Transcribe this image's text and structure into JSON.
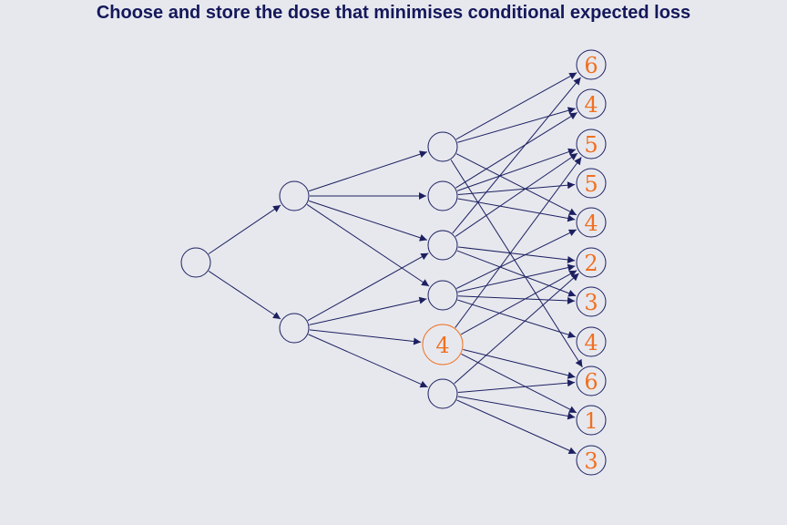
{
  "title": "Choose and store the dose that minimises conditional expected loss",
  "colors": {
    "background": "#e7e8ee",
    "edge": "#1c2060",
    "value": "#f07020",
    "highlight": "#f07020"
  },
  "nodes": [
    {
      "id": "root",
      "value": ""
    },
    {
      "id": "a1",
      "value": ""
    },
    {
      "id": "a2",
      "value": ""
    },
    {
      "id": "b1",
      "value": ""
    },
    {
      "id": "b2",
      "value": ""
    },
    {
      "id": "b3",
      "value": ""
    },
    {
      "id": "b4",
      "value": ""
    },
    {
      "id": "b5",
      "value": "4",
      "highlight": true
    },
    {
      "id": "b6",
      "value": ""
    },
    {
      "id": "l1",
      "value": "6"
    },
    {
      "id": "l2",
      "value": "4"
    },
    {
      "id": "l3",
      "value": "5"
    },
    {
      "id": "l4",
      "value": "5"
    },
    {
      "id": "l5",
      "value": "4"
    },
    {
      "id": "l6",
      "value": "2"
    },
    {
      "id": "l7",
      "value": "3"
    },
    {
      "id": "l8",
      "value": "4"
    },
    {
      "id": "l9",
      "value": "6"
    },
    {
      "id": "l10",
      "value": "1"
    },
    {
      "id": "l11",
      "value": "3"
    }
  ],
  "edges": [
    [
      "root",
      "a1"
    ],
    [
      "root",
      "a2"
    ],
    [
      "a1",
      "b1"
    ],
    [
      "a1",
      "b2"
    ],
    [
      "a1",
      "b3"
    ],
    [
      "a1",
      "b4"
    ],
    [
      "a2",
      "b3"
    ],
    [
      "a2",
      "b4"
    ],
    [
      "a2",
      "b5"
    ],
    [
      "a2",
      "b6"
    ],
    [
      "b1",
      "l1"
    ],
    [
      "b1",
      "l2"
    ],
    [
      "b1",
      "l5"
    ],
    [
      "b1",
      "l9"
    ],
    [
      "b2",
      "l2"
    ],
    [
      "b2",
      "l3"
    ],
    [
      "b2",
      "l4"
    ],
    [
      "b2",
      "l5"
    ],
    [
      "b3",
      "l1"
    ],
    [
      "b3",
      "l3"
    ],
    [
      "b3",
      "l6"
    ],
    [
      "b3",
      "l7"
    ],
    [
      "b4",
      "l6"
    ],
    [
      "b4",
      "l7"
    ],
    [
      "b4",
      "l8"
    ],
    [
      "b4",
      "l5"
    ],
    [
      "b5",
      "l3"
    ],
    [
      "b5",
      "l6"
    ],
    [
      "b5",
      "l9"
    ],
    [
      "b5",
      "l10"
    ],
    [
      "b6",
      "l6"
    ],
    [
      "b6",
      "l9"
    ],
    [
      "b6",
      "l10"
    ],
    [
      "b6",
      "l11"
    ]
  ]
}
